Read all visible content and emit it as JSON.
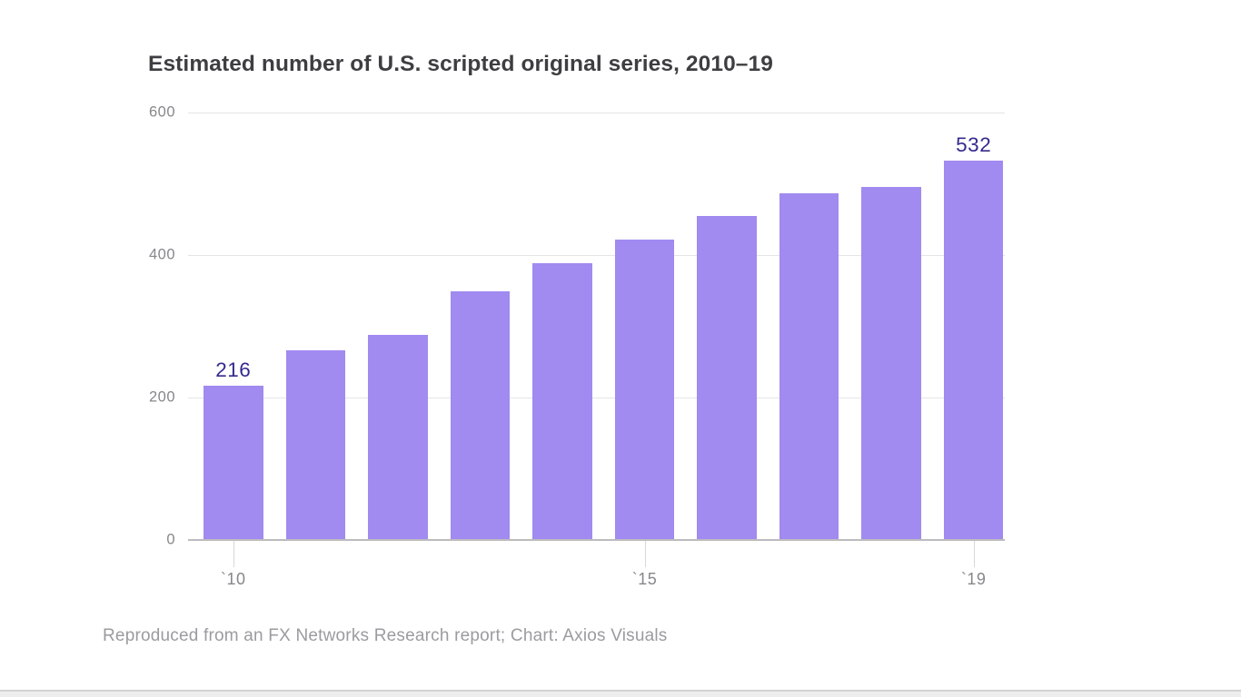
{
  "page": {
    "background": "#ffffff"
  },
  "chart_data": {
    "type": "bar",
    "title": "Estimated number of U.S. scripted original series, 2010–19",
    "footer": "Reproduced from an FX Networks Research report; Chart: Axios Visuals",
    "categories": [
      "2010",
      "2011",
      "2012",
      "2013",
      "2014",
      "2015",
      "2016",
      "2017",
      "2018",
      "2019"
    ],
    "values": [
      216,
      266,
      288,
      349,
      389,
      422,
      455,
      487,
      495,
      532
    ],
    "labeled_bars": [
      0,
      9
    ],
    "x_tick_labels": [
      {
        "index": 0,
        "label": "`10"
      },
      {
        "index": 5,
        "label": "`15"
      },
      {
        "index": 9,
        "label": "`19"
      }
    ],
    "y_ticks": [
      600,
      400,
      200,
      0
    ],
    "ylim": [
      0,
      600
    ],
    "grid": true,
    "legend": "none",
    "colors": {
      "bar": "#a18af0",
      "bar_value_label": "#332a8f",
      "axis_label": "#87878b",
      "gridline": "#e5e5e7",
      "baseline": "#bcbcbe",
      "tick": "#d8d8da",
      "title": "#3e3e42",
      "footer": "#9b9ba0"
    }
  }
}
